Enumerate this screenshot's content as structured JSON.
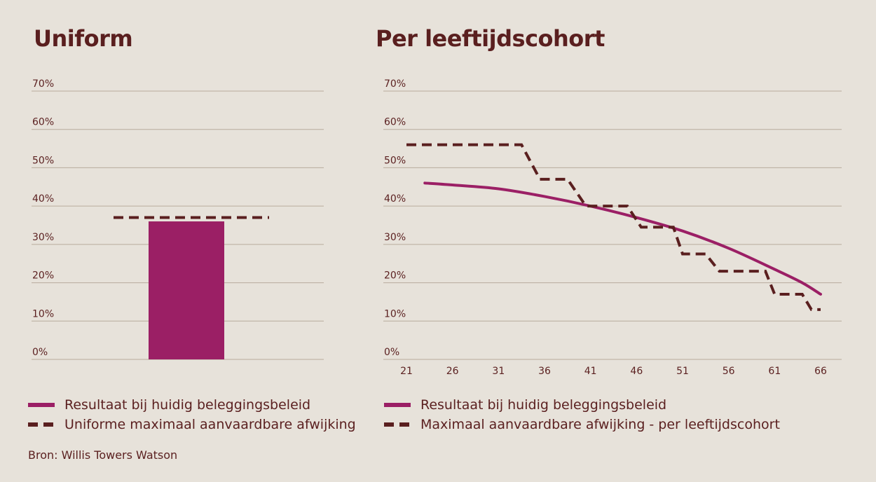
{
  "chart_data": [
    {
      "type": "bar",
      "title": "Uniform",
      "yticks": [
        "70%",
        "60%",
        "50%",
        "40%",
        "30%",
        "20%",
        "10%",
        "0%"
      ],
      "ylim": [
        0,
        70
      ],
      "grid": true,
      "values": [
        36
      ],
      "reference_line": {
        "value": 37,
        "style": "dashed"
      },
      "colors": {
        "bar": "#9b1f65",
        "reference": "#5a1f1f"
      },
      "legend": [
        {
          "label": "Resultaat bij huidig beleggingsbeleid",
          "style": "solid"
        },
        {
          "label": "Uniforme maximaal aanvaardbare afwijking",
          "style": "dashed"
        }
      ]
    },
    {
      "type": "line",
      "title": "Per leeftijdscohort",
      "yticks": [
        "70%",
        "60%",
        "50%",
        "40%",
        "30%",
        "20%",
        "10%",
        "0%"
      ],
      "xticks": [
        "21",
        "26",
        "31",
        "36",
        "41",
        "46",
        "51",
        "56",
        "61",
        "66"
      ],
      "xlim": [
        21,
        68
      ],
      "ylim": [
        0,
        70
      ],
      "grid": true,
      "series": [
        {
          "name": "Resultaat bij huidig beleggingsbeleid",
          "style": "solid",
          "color": "#9b1f65",
          "x": [
            23,
            26,
            31,
            36,
            41,
            46,
            51,
            56,
            61,
            64,
            66
          ],
          "y": [
            46,
            45.5,
            44.5,
            42.5,
            40,
            37,
            33.5,
            29,
            23.5,
            20,
            17
          ]
        },
        {
          "name": "Maximaal aanvaardbare afwijking - per leeftijdscohort",
          "style": "dashed",
          "color": "#5a1f1f",
          "x": [
            21,
            33.5,
            35.5,
            38.5,
            40.5,
            45,
            46.5,
            48.5,
            50,
            51,
            53.5,
            55,
            56.5,
            58,
            60,
            61,
            62.5,
            64,
            65,
            66
          ],
          "y": [
            56,
            56,
            47,
            47,
            40,
            40,
            34.5,
            34.5,
            34.5,
            27.5,
            27.5,
            23,
            23,
            23,
            23,
            17,
            17,
            17,
            13,
            13
          ]
        }
      ],
      "legend": [
        {
          "label": "Resultaat bij huidig beleggingsbeleid",
          "style": "solid"
        },
        {
          "label": "Maximaal aanvaardbare afwijking - per leeftijdscohort",
          "style": "dashed"
        }
      ]
    }
  ],
  "source": "Bron: Willis Towers Watson"
}
